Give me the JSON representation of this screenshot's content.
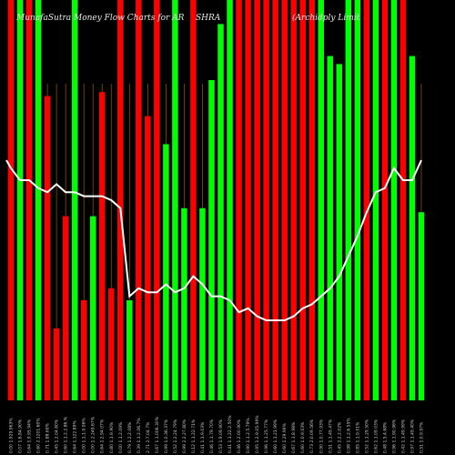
{
  "title": {
    "left": "MunafaSutra  Money Flow  Charts for AR",
    "middle": "SHRA",
    "right": "(Archidply  Limit"
  },
  "chart_data": {
    "type": "bar",
    "title": "MunafaSutra Money Flow Charts for ARCHIDPLY (Archidply Limit",
    "ylim": [
      0,
      100
    ],
    "x": [
      "0.00 1.929.963%",
      "0.07 1.6.84.90%",
      "0.64 1.9.95.94%",
      "0.60 2.1201.60%",
      "0.71 1.88.69%",
      "0.45 1.2.04.60%",
      "0.60 1.1.2.2.86.%",
      "0.64 1.122.89%",
      "0.00 1.1.1.9.06%",
      "0.00 1.2.249.67%",
      "0.64 1.2.94.07%",
      "0.80 1.1.9.90%",
      "0.00 1.1.2.09%",
      "0.79 1.2.2.08%",
      "0.39 1.1.2.06.7%",
      "2.71 2.7.04.7%",
      "0.67 1.1.006.30%",
      "0.99 1.0.36.37%",
      "0.52 1.2.24.79%",
      "0.99 2.2.27.80%",
      "0.12 1.1.22.71%",
      "0.41 1.1.9.03%",
      "0.46 1.1.79.70%",
      "0.53 1.9.09.90%",
      "0.41 1.1.22.2.50%",
      "0.46 1.2.00.90%",
      "0.90 1.1.2.5.79%",
      "0.95 1.2.9.05.99%",
      "0.96 1.1.25.77%",
      "0.60 1.1.21.99%",
      "0.60 1.29.99%",
      "0.67 1.1.8.98%",
      "0.60 1.0.9.03%",
      "0.73 2.0.09.56%",
      "0.90 1.0.77.93%",
      "0.51 1.1.49.47%",
      "0.45 2.2.2.02%",
      "0.98 1.1.2.6.55%",
      "0.85 1.1.9.01%",
      "0.52 1.1.29.50%",
      "0.62 1.1.09.03%",
      "0.48 1.5.4.68%",
      "0.96 1.1.90.96%",
      "0.42 1.1.49.99%",
      "0.97 1.1.49.40%",
      "0.51 1.0.9.97%"
    ],
    "series": [
      {
        "colors": [
          "red",
          "green",
          "red",
          "green",
          "red",
          "red",
          "red",
          "green",
          "red",
          "green",
          "red",
          "red",
          "red",
          "green",
          "red",
          "red",
          "red",
          "green",
          "green",
          "green",
          "red",
          "green",
          "green",
          "green",
          "green",
          "red",
          "red",
          "red",
          "red",
          "red",
          "red",
          "red",
          "red",
          "red",
          "green",
          "green",
          "green",
          "green",
          "green",
          "red",
          "green",
          "red",
          "green",
          "red",
          "green",
          "green"
        ],
        "values": [
          100,
          100,
          100,
          100,
          76,
          18,
          46,
          100,
          25,
          46,
          77,
          28,
          100,
          25,
          100,
          71,
          100,
          64,
          100,
          48,
          100,
          48,
          80,
          94,
          100,
          100,
          100,
          100,
          100,
          100,
          100,
          100,
          100,
          100,
          100,
          86,
          84,
          100,
          100,
          100,
          100,
          100,
          100,
          100,
          86,
          47
        ]
      },
      {
        "line": [
          58,
          55,
          55,
          53,
          52,
          54,
          52,
          52,
          51,
          51,
          51,
          50,
          48,
          26,
          28,
          27,
          27,
          29,
          27,
          28,
          31,
          29,
          26,
          26,
          25,
          22,
          23,
          21,
          20,
          20,
          20,
          21,
          23,
          24,
          26,
          28,
          31,
          36,
          41,
          47,
          52,
          53,
          58,
          55,
          55,
          60
        ]
      }
    ],
    "vline_color": "#8a5200"
  }
}
